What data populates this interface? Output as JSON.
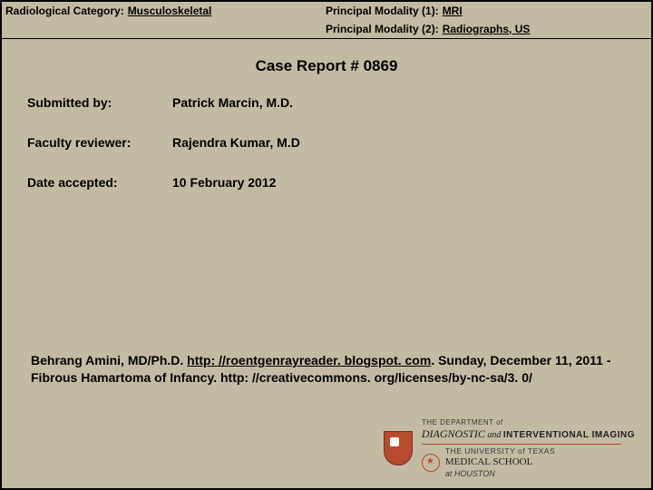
{
  "header": {
    "category_label": "Radiological Category:",
    "category_value": "Musculoskeletal",
    "modality1_label": "Principal Modality (1):",
    "modality1_value": "MRI",
    "modality2_label": "Principal Modality (2):",
    "modality2_value": "Radiographs, US"
  },
  "title": "Case Report # 0869",
  "info": {
    "submitted_label": "Submitted by:",
    "submitted_value": "Patrick Marcin, M.D.",
    "reviewer_label": "Faculty reviewer:",
    "reviewer_value": "Rajendra Kumar, M.D",
    "date_label": "Date accepted:",
    "date_value": "10 February 2012"
  },
  "citation": {
    "author": "Behrang Amini, MD/Ph.D. ",
    "link1": "http: //roentgenrayreader. blogspot. com",
    "mid": ". Sunday, December 11, 2011 - Fibrous Hamartoma of Infancy. http: //creativecommons. org/licenses/by-nc-sa/3. 0/"
  },
  "footer": {
    "line1": "THE DEPARTMENT of",
    "diag": "DIAGNOSTIC",
    "and": " and ",
    "interv": "INTERVENTIONAL IMAGING",
    "ut": "THE UNIVERSITY of TEXAS",
    "ms": "MEDICAL SCHOOL",
    "hou": "at HOUSTON"
  },
  "colors": {
    "background": "#c3baa4",
    "border": "#000000",
    "accent": "#b84a2e",
    "text": "#000000"
  }
}
